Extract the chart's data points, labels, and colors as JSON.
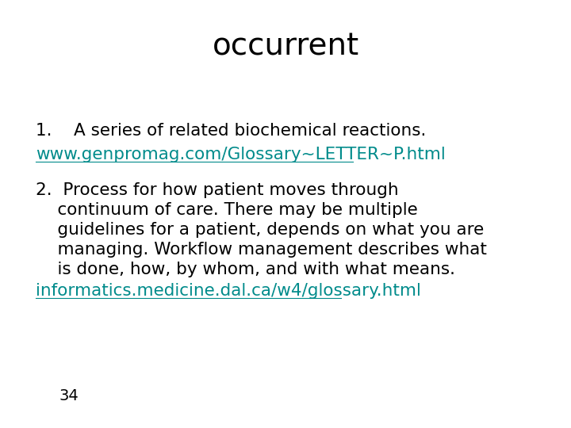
{
  "title": "occurrent",
  "title_fontsize": 28,
  "title_color": "#000000",
  "background_color": "#ffffff",
  "line1": "1.    A series of related biochemical reactions.",
  "line1_color": "#000000",
  "line1_fontsize": 15.5,
  "line2": "www.genpromag.com/Glossary~LETTER~P.html",
  "line2_color": "#008B8B",
  "line2_fontsize": 15.5,
  "line3_parts": [
    "2.  Process for how patient moves through",
    "    continuum of care. There may be multiple",
    "    guidelines for a patient, depends on what you are",
    "    managing. Workflow management describes what",
    "    is done, how, by whom, and with what means."
  ],
  "line3_color": "#000000",
  "line3_fontsize": 15.5,
  "line4": "informatics.medicine.dal.ca/w4/glossary.html",
  "line4_color": "#008B8B",
  "line4_fontsize": 15.5,
  "page_number": "34",
  "page_number_fontsize": 14,
  "page_number_color": "#000000"
}
